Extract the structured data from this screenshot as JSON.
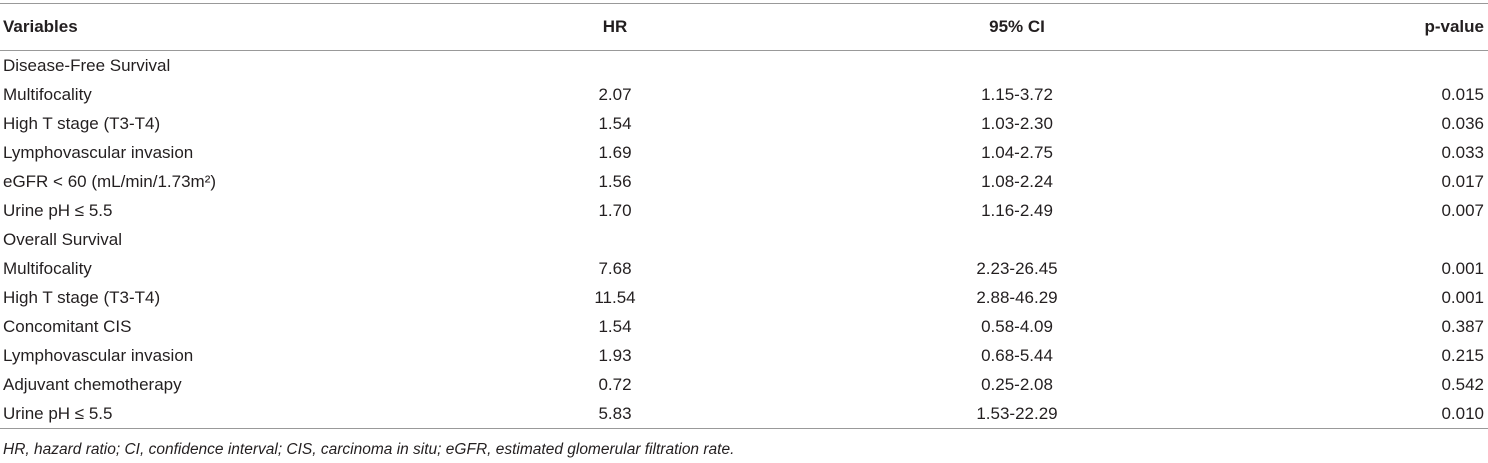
{
  "table": {
    "header": [
      "Variables",
      "HR",
      "95% CI",
      "p-value"
    ],
    "sections": [
      {
        "title": "Disease-Free Survival",
        "rows": [
          [
            "Multifocality",
            "2.07",
            "1.15-3.72",
            "0.015"
          ],
          [
            "High T stage (T3-T4)",
            "1.54",
            "1.03-2.30",
            "0.036"
          ],
          [
            "Lymphovascular invasion",
            "1.69",
            "1.04-2.75",
            "0.033"
          ],
          [
            "eGFR < 60 (mL/min/1.73m²)",
            "1.56",
            "1.08-2.24",
            "0.017"
          ],
          [
            "Urine pH ≤ 5.5",
            "1.70",
            "1.16-2.49",
            "0.007"
          ]
        ]
      },
      {
        "title": "Overall Survival",
        "rows": [
          [
            "Multifocality",
            "7.68",
            "2.23-26.45",
            "0.001"
          ],
          [
            "High T stage (T3-T4)",
            "11.54",
            "2.88-46.29",
            "0.001"
          ],
          [
            "Concomitant CIS",
            "1.54",
            "0.58-4.09",
            "0.387"
          ],
          [
            "Lymphovascular invasion",
            "1.93",
            "0.68-5.44",
            "0.215"
          ],
          [
            "Adjuvant chemotherapy",
            "0.72",
            "0.25-2.08",
            "0.542"
          ],
          [
            "Urine pH ≤ 5.5",
            "5.83",
            "1.53-22.29",
            "0.010"
          ]
        ]
      }
    ],
    "footnote": "HR, hazard ratio; CI, confidence interval; CIS, carcinoma in situ; eGFR, estimated glomerular filtration rate."
  }
}
